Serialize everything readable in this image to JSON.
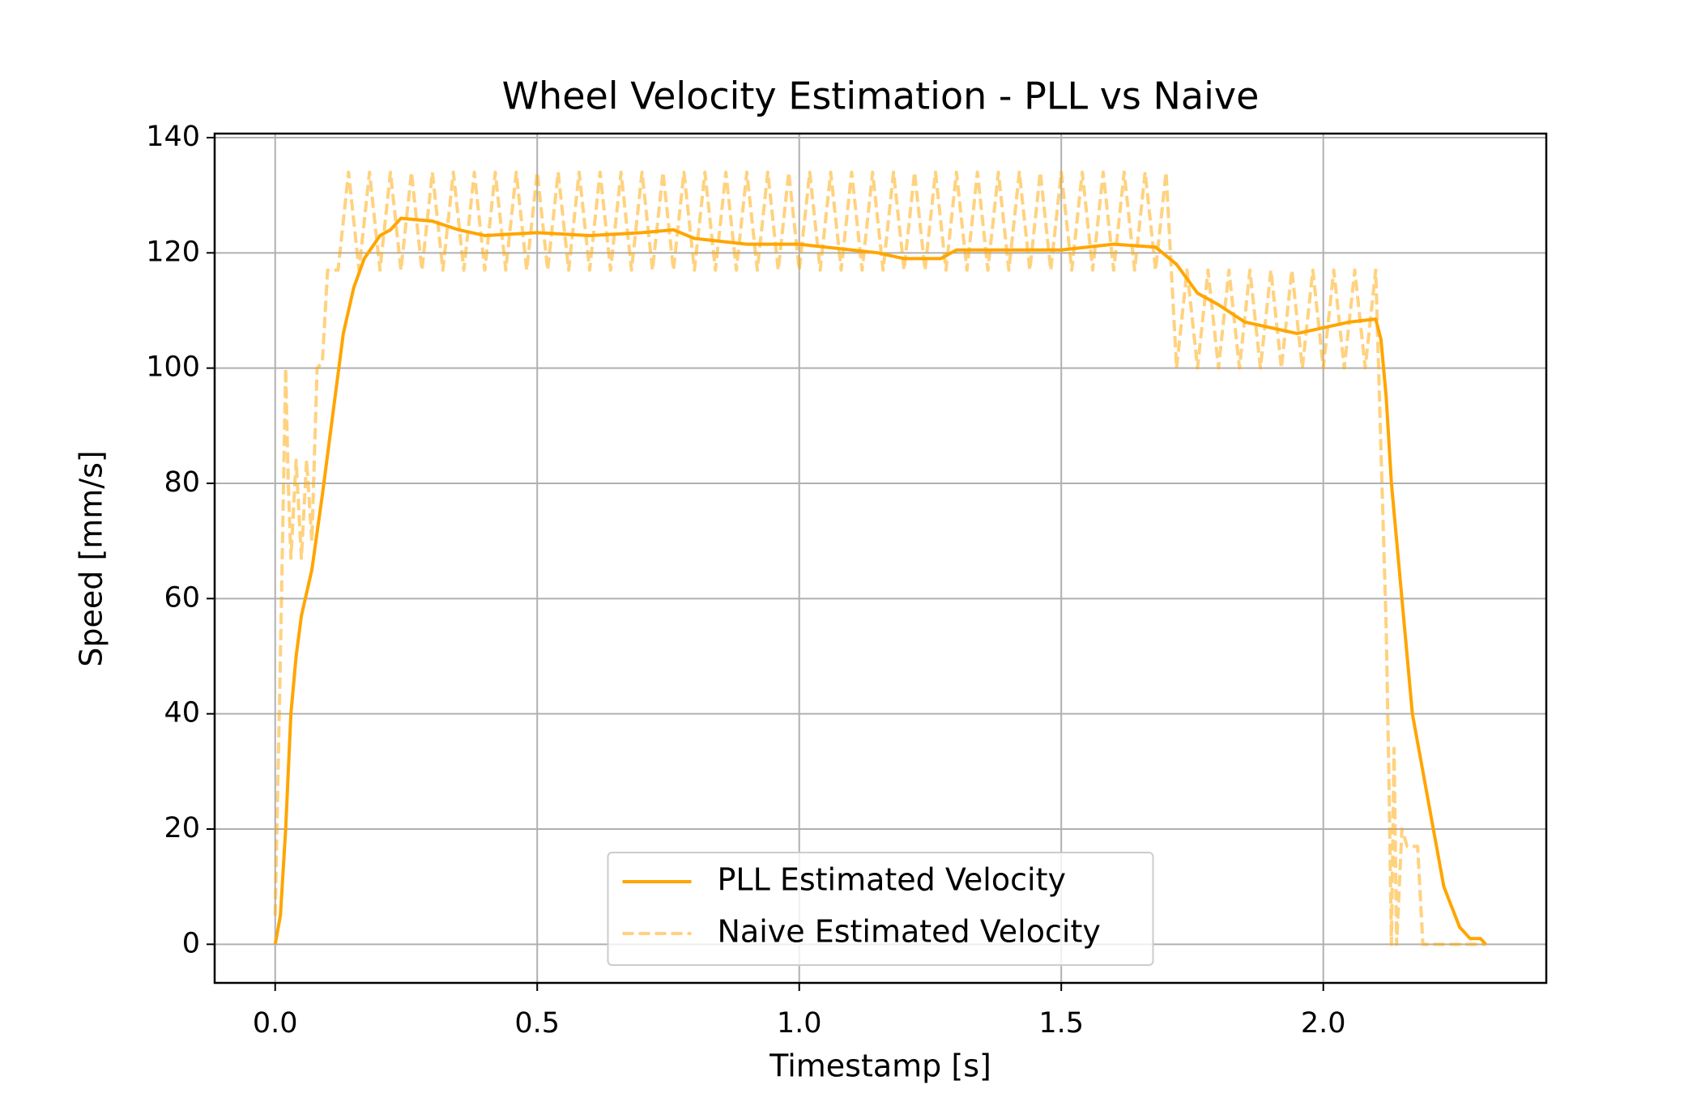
{
  "chart_data": {
    "type": "line",
    "title": "Wheel Velocity Estimation - PLL vs Naive",
    "x_label": "Timestamp [s]",
    "y_label": "Speed [mm/s]",
    "xlim": [
      -0.1155,
      2.4255
    ],
    "ylim": [
      -6.7,
      140.7
    ],
    "xticks": [
      {
        "value": 0,
        "label": "0.0"
      },
      {
        "value": 0.5,
        "label": "0.5"
      },
      {
        "value": 1,
        "label": "1.0"
      },
      {
        "value": 1.5,
        "label": "1.5"
      },
      {
        "value": 2,
        "label": "2.0"
      }
    ],
    "yticks": [
      0,
      20,
      40,
      60,
      80,
      100,
      120,
      140
    ],
    "grid": true,
    "legend": "lower center",
    "series": [
      {
        "name": "PLL Estimated Velocity",
        "color": "#ffa500",
        "linestyle": "solid",
        "alpha": 1,
        "x": [
          0,
          0.01,
          0.02,
          0.03,
          0.04,
          0.05,
          0.07,
          0.09,
          0.11,
          0.13,
          0.15,
          0.17,
          0.2,
          0.22,
          0.24,
          0.3,
          0.35,
          0.4,
          0.5,
          0.6,
          0.7,
          0.76,
          0.8,
          0.9,
          1.0,
          1.1,
          1.15,
          1.2,
          1.27,
          1.3,
          1.4,
          1.5,
          1.6,
          1.68,
          1.72,
          1.76,
          1.8,
          1.85,
          1.9,
          1.95,
          2.0,
          2.05,
          2.1,
          2.11,
          2.12,
          2.13,
          2.15,
          2.17,
          2.2,
          2.23,
          2.26,
          2.28,
          2.3,
          2.31
        ],
        "values": [
          0,
          5,
          20,
          40,
          50,
          57,
          65,
          78,
          92,
          106,
          114,
          119,
          123,
          124,
          126,
          125.5,
          124,
          123,
          123.5,
          123,
          123.5,
          124,
          122.5,
          121.5,
          121.5,
          120.5,
          120,
          119,
          119,
          120.5,
          120.5,
          120.5,
          121.5,
          121,
          118,
          113,
          111,
          108,
          107,
          106,
          107,
          108,
          108.5,
          105,
          95,
          80,
          60,
          40,
          25,
          10,
          3,
          1,
          1,
          0
        ]
      },
      {
        "name": "Naive Estimated Velocity",
        "color": "#ffa500",
        "linestyle": "dashed",
        "alpha": 0.5,
        "x": [
          0,
          0.01,
          0.02,
          0.025,
          0.03,
          0.04,
          0.05,
          0.06,
          0.07,
          0.08,
          0.09,
          0.1,
          0.12,
          0.14,
          0.16,
          0.18,
          0.2,
          0.22,
          0.24,
          0.26,
          0.28,
          0.3,
          0.32,
          0.34,
          0.36,
          0.38,
          0.4,
          0.42,
          0.44,
          0.46,
          0.48,
          0.5,
          0.52,
          0.54,
          0.56,
          0.58,
          0.6,
          0.62,
          0.64,
          0.66,
          0.68,
          0.7,
          0.72,
          0.74,
          0.76,
          0.78,
          0.8,
          0.82,
          0.84,
          0.86,
          0.88,
          0.9,
          0.92,
          0.94,
          0.96,
          0.98,
          1.0,
          1.02,
          1.04,
          1.06,
          1.08,
          1.1,
          1.12,
          1.14,
          1.16,
          1.18,
          1.2,
          1.22,
          1.24,
          1.26,
          1.28,
          1.3,
          1.32,
          1.34,
          1.36,
          1.38,
          1.4,
          1.42,
          1.44,
          1.46,
          1.48,
          1.5,
          1.52,
          1.54,
          1.56,
          1.58,
          1.6,
          1.62,
          1.64,
          1.66,
          1.68,
          1.7,
          1.72,
          1.74,
          1.76,
          1.78,
          1.8,
          1.82,
          1.84,
          1.86,
          1.88,
          1.9,
          1.92,
          1.94,
          1.96,
          1.98,
          2.0,
          2.02,
          2.04,
          2.06,
          2.08,
          2.1,
          2.12,
          2.125,
          2.13,
          2.135,
          2.14,
          2.15,
          2.16,
          2.18,
          2.19,
          2.31
        ],
        "values": [
          5,
          50,
          100,
          80,
          67,
          84,
          67,
          84,
          70,
          100,
          101,
          117,
          117,
          134,
          117,
          134,
          117,
          134,
          117,
          134,
          117,
          134,
          117,
          134,
          117,
          134,
          117,
          134,
          117,
          134,
          117,
          134,
          117,
          134,
          117,
          134,
          117,
          134,
          117,
          134,
          117,
          134,
          117,
          134,
          117,
          134,
          117,
          134,
          117,
          134,
          117,
          134,
          117,
          134,
          117,
          134,
          117,
          134,
          117,
          134,
          117,
          134,
          117,
          134,
          117,
          134,
          117,
          134,
          117,
          134,
          117,
          134,
          117,
          134,
          117,
          134,
          117,
          134,
          117,
          134,
          117,
          134,
          117,
          134,
          117,
          134,
          117,
          134,
          117,
          134,
          117,
          134,
          100,
          117,
          100,
          117,
          100,
          117,
          100,
          117,
          100,
          117,
          100,
          117,
          100,
          117,
          100,
          117,
          100,
          117,
          100,
          117,
          55,
          30,
          0,
          34,
          0,
          20,
          17,
          17,
          0,
          0
        ]
      }
    ]
  }
}
